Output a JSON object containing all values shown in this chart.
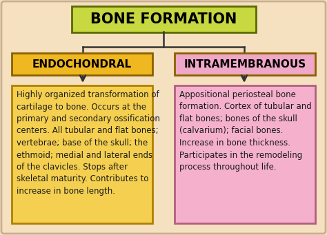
{
  "background_color": "#f5e0c0",
  "border_color": "#c8b090",
  "title": "BONE FORMATION",
  "title_box_color": "#c8d840",
  "title_box_edge": "#5a6a00",
  "title_text_color": "#000000",
  "title_fontsize": 15,
  "left_header": "ENDOCHONDRAL",
  "right_header": "INTRAMEMBRANOUS",
  "header_box_color_left": "#f0b820",
  "header_box_color_right": "#f0a8c8",
  "header_box_edge": "#8a6000",
  "header_text_color": "#000000",
  "header_fontsize": 11,
  "left_body": "Highly organized transformation of\ncartilage to bone. Occurs at the\nprimary and secondary ossification\ncenters. All tubular and flat bones;\nvertebrae; base of the skull; the\nethmoid; medial and lateral ends\nof the clavicles. Stops after\nskeletal maturity. Contributes to\nincrease in bone length.",
  "right_body": "Appositional periosteal bone\nformation. Cortex of tubular and\nflat bones; bones of the skull\n(calvarium); facial bones.\nIncrease in bone thickness.\nParticipates in the remodeling\nprocess throughout life.",
  "body_box_color_left": "#f5d050",
  "body_box_color_right": "#f5b0cc",
  "body_box_edge_left": "#b08000",
  "body_box_edge_right": "#b06080",
  "body_text_color": "#1a1a1a",
  "body_fontsize": 8.5,
  "arrow_color": "#333333",
  "line_color": "#333333"
}
